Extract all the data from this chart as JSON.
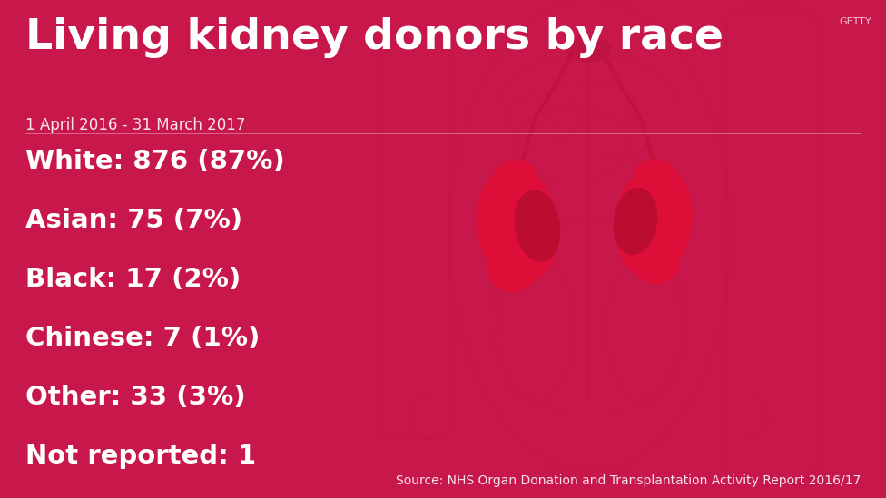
{
  "title": "Living kidney donors by race",
  "subtitle": "1 April 2016 - 31 March 2017",
  "data_lines": [
    "White: 876 (87%)",
    "Asian: 75 (7%)",
    "Black: 17 (2%)",
    "Chinese: 7 (1%)",
    "Other: 33 (3%)",
    "Not reported: 1"
  ],
  "source": "Source: NHS Organ Donation and Transplantation Activity Report 2016/17",
  "getty": "GETTY",
  "bg_color": "#c8174a",
  "text_color": "#ffffff",
  "title_fontsize": 34,
  "subtitle_fontsize": 12,
  "data_fontsize": 21,
  "source_fontsize": 10,
  "getty_fontsize": 8
}
